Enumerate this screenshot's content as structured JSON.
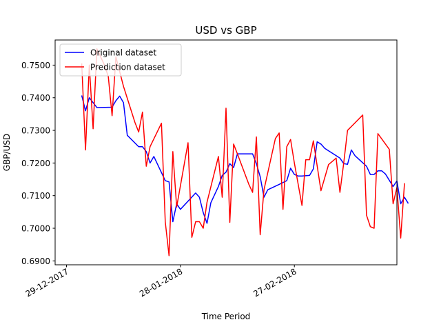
{
  "chart_data": {
    "type": "line",
    "title": "USD vs GBP",
    "xlabel": "Time Period",
    "ylabel": "GBP/USD",
    "xlim": [
      "2017-12-26",
      "2018-03-26"
    ],
    "ylim": [
      0.6888,
      0.7577
    ],
    "xticks": [
      {
        "date": "2017-12-29",
        "label": "29-12-2017"
      },
      {
        "date": "2018-01-28",
        "label": "28-01-2018"
      },
      {
        "date": "2018-02-27",
        "label": "27-02-2018"
      }
    ],
    "yticks": [
      {
        "value": 0.69,
        "label": "0.6900"
      },
      {
        "value": 0.7,
        "label": "0.7000"
      },
      {
        "value": 0.71,
        "label": "0.7100"
      },
      {
        "value": 0.72,
        "label": "0.7200"
      },
      {
        "value": 0.73,
        "label": "0.7300"
      },
      {
        "value": 0.74,
        "label": "0.7400"
      },
      {
        "value": 0.75,
        "label": "0.7500"
      }
    ],
    "grid": false,
    "legend_position": "top-left",
    "series": [
      {
        "name": "Original dataset",
        "color": "#0000ff",
        "points": [
          [
            "2018-01-02",
            0.7407
          ],
          [
            "2018-01-03",
            0.736
          ],
          [
            "2018-01-04",
            0.74
          ],
          [
            "2018-01-05",
            0.7385
          ],
          [
            "2018-01-06",
            0.737
          ],
          [
            "2018-01-10",
            0.7371
          ],
          [
            "2018-01-11",
            0.7391
          ],
          [
            "2018-01-12",
            0.7405
          ],
          [
            "2018-01-13",
            0.7385
          ],
          [
            "2018-01-14",
            0.7285
          ],
          [
            "2018-01-17",
            0.725
          ],
          [
            "2018-01-18",
            0.725
          ],
          [
            "2018-01-19",
            0.7235
          ],
          [
            "2018-01-20",
            0.72
          ],
          [
            "2018-01-21",
            0.722
          ],
          [
            "2018-01-24",
            0.7146
          ],
          [
            "2018-01-25",
            0.7142
          ],
          [
            "2018-01-26",
            0.702
          ],
          [
            "2018-01-27",
            0.7075
          ],
          [
            "2018-01-28",
            0.7058
          ],
          [
            "2018-02-01",
            0.7108
          ],
          [
            "2018-02-02",
            0.7095
          ],
          [
            "2018-02-03",
            0.7048
          ],
          [
            "2018-02-04",
            0.7015
          ],
          [
            "2018-02-05",
            0.7078
          ],
          [
            "2018-02-07",
            0.7128
          ],
          [
            "2018-02-08",
            0.7162
          ],
          [
            "2018-02-09",
            0.7172
          ],
          [
            "2018-02-10",
            0.7198
          ],
          [
            "2018-02-11",
            0.7186
          ],
          [
            "2018-02-12",
            0.7228
          ],
          [
            "2018-02-16",
            0.7228
          ],
          [
            "2018-02-17",
            0.7198
          ],
          [
            "2018-02-18",
            0.7158
          ],
          [
            "2018-02-19",
            0.7095
          ],
          [
            "2018-02-20",
            0.7118
          ],
          [
            "2018-02-24",
            0.714
          ],
          [
            "2018-02-25",
            0.7146
          ],
          [
            "2018-02-26",
            0.7184
          ],
          [
            "2018-02-27",
            0.7165
          ],
          [
            "2018-02-28",
            0.716
          ],
          [
            "2018-03-01",
            0.716
          ],
          [
            "2018-03-03",
            0.7162
          ],
          [
            "2018-03-04",
            0.7182
          ],
          [
            "2018-03-05",
            0.7265
          ],
          [
            "2018-03-06",
            0.7258
          ],
          [
            "2018-03-07",
            0.7245
          ],
          [
            "2018-03-11",
            0.7215
          ],
          [
            "2018-03-12",
            0.7198
          ],
          [
            "2018-03-13",
            0.7196
          ],
          [
            "2018-03-14",
            0.724
          ],
          [
            "2018-03-15",
            0.7222
          ],
          [
            "2018-03-18",
            0.719
          ],
          [
            "2018-03-19",
            0.7165
          ],
          [
            "2018-03-20",
            0.7165
          ],
          [
            "2018-03-21",
            0.7176
          ],
          [
            "2018-03-22",
            0.7176
          ],
          [
            "2018-03-23",
            0.7166
          ],
          [
            "2018-03-25",
            0.7128
          ],
          [
            "2018-03-26",
            0.7145
          ],
          [
            "2018-03-27",
            0.7075
          ],
          [
            "2018-03-28",
            0.7095
          ],
          [
            "2018-03-29",
            0.7076
          ]
        ]
      },
      {
        "name": "Prediction dataset",
        "color": "#ff0000",
        "points": [
          [
            "2018-01-02",
            0.7505
          ],
          [
            "2018-01-03",
            0.724
          ],
          [
            "2018-01-04",
            0.75
          ],
          [
            "2018-01-05",
            0.7305
          ],
          [
            "2018-01-06",
            0.755
          ],
          [
            "2018-01-08",
            0.75
          ],
          [
            "2018-01-09",
            0.7465
          ],
          [
            "2018-01-10",
            0.7345
          ],
          [
            "2018-01-11",
            0.7525
          ],
          [
            "2018-01-13",
            0.7435
          ],
          [
            "2018-01-16",
            0.7325
          ],
          [
            "2018-01-17",
            0.7295
          ],
          [
            "2018-01-18",
            0.7356
          ],
          [
            "2018-01-19",
            0.719
          ],
          [
            "2018-01-20",
            0.725
          ],
          [
            "2018-01-23",
            0.7322
          ],
          [
            "2018-01-24",
            0.702
          ],
          [
            "2018-01-25",
            0.6916
          ],
          [
            "2018-01-26",
            0.7235
          ],
          [
            "2018-01-27",
            0.7065
          ],
          [
            "2018-01-30",
            0.7262
          ],
          [
            "2018-01-31",
            0.6972
          ],
          [
            "2018-02-01",
            0.702
          ],
          [
            "2018-02-02",
            0.702
          ],
          [
            "2018-02-03",
            0.7
          ],
          [
            "2018-02-04",
            0.708
          ],
          [
            "2018-02-07",
            0.722
          ],
          [
            "2018-02-08",
            0.7095
          ],
          [
            "2018-02-09",
            0.7368
          ],
          [
            "2018-02-10",
            0.7018
          ],
          [
            "2018-02-11",
            0.7258
          ],
          [
            "2018-02-12",
            0.7228
          ],
          [
            "2018-02-15",
            0.7135
          ],
          [
            "2018-02-16",
            0.711
          ],
          [
            "2018-02-17",
            0.728
          ],
          [
            "2018-02-18",
            0.698
          ],
          [
            "2018-02-19",
            0.7118
          ],
          [
            "2018-02-22",
            0.7275
          ],
          [
            "2018-02-23",
            0.7292
          ],
          [
            "2018-02-24",
            0.7058
          ],
          [
            "2018-02-25",
            0.725
          ],
          [
            "2018-02-26",
            0.7272
          ],
          [
            "2018-02-27",
            0.72
          ],
          [
            "2018-03-01",
            0.707
          ],
          [
            "2018-03-02",
            0.721
          ],
          [
            "2018-03-03",
            0.721
          ],
          [
            "2018-03-04",
            0.7268
          ],
          [
            "2018-03-06",
            0.7115
          ],
          [
            "2018-03-08",
            0.7195
          ],
          [
            "2018-03-10",
            0.7215
          ],
          [
            "2018-03-11",
            0.711
          ],
          [
            "2018-03-12",
            0.72
          ],
          [
            "2018-03-13",
            0.73
          ],
          [
            "2018-03-17",
            0.7347
          ],
          [
            "2018-03-18",
            0.704
          ],
          [
            "2018-03-19",
            0.7005
          ],
          [
            "2018-03-20",
            0.7
          ],
          [
            "2018-03-21",
            0.729
          ],
          [
            "2018-03-24",
            0.7242
          ],
          [
            "2018-03-25",
            0.7075
          ],
          [
            "2018-03-26",
            0.7125
          ],
          [
            "2018-03-27",
            0.697
          ],
          [
            "2018-03-28",
            0.7138
          ]
        ]
      }
    ]
  }
}
